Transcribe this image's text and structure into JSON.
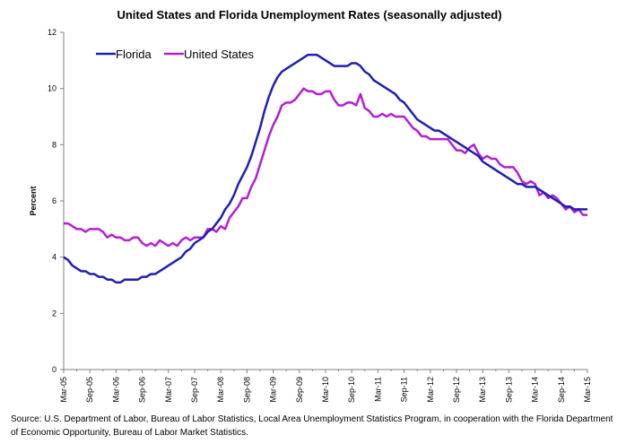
{
  "chart_data": {
    "type": "line",
    "title": "United States and Florida Unemployment Rates (seasonally adjusted)",
    "ylabel": "Percent",
    "xlabel": "",
    "ylim": [
      0,
      12
    ],
    "yticks": [
      0,
      2,
      4,
      6,
      8,
      10,
      12
    ],
    "xticks": [
      "Mar-05",
      "Sep-05",
      "Mar-06",
      "Sep-06",
      "Mar-07",
      "Sep-07",
      "Mar-08",
      "Sep-08",
      "Mar-09",
      "Sep-09",
      "Mar-10",
      "Sep-10",
      "Mar-11",
      "Sep-11",
      "Mar-12",
      "Sep-12",
      "Mar-13",
      "Sep-13",
      "Mar-14",
      "Sep-14",
      "Mar-15"
    ],
    "x_start": "Mar-05",
    "x_end": "Mar-15",
    "grid": false,
    "legend_position": "top-left",
    "series": [
      {
        "name": "Florida",
        "color": "#1f1fb4",
        "values": [
          4.0,
          3.9,
          3.7,
          3.6,
          3.5,
          3.5,
          3.4,
          3.4,
          3.3,
          3.3,
          3.2,
          3.2,
          3.1,
          3.1,
          3.2,
          3.2,
          3.2,
          3.2,
          3.3,
          3.3,
          3.4,
          3.4,
          3.5,
          3.6,
          3.7,
          3.8,
          3.9,
          4.0,
          4.2,
          4.3,
          4.5,
          4.6,
          4.7,
          4.9,
          5.0,
          5.2,
          5.4,
          5.7,
          5.9,
          6.2,
          6.6,
          6.9,
          7.2,
          7.6,
          8.1,
          8.6,
          9.2,
          9.7,
          10.1,
          10.4,
          10.6,
          10.7,
          10.8,
          10.9,
          11.0,
          11.1,
          11.2,
          11.2,
          11.2,
          11.1,
          11.0,
          10.9,
          10.8,
          10.8,
          10.8,
          10.8,
          10.9,
          10.9,
          10.8,
          10.6,
          10.5,
          10.3,
          10.2,
          10.1,
          10.0,
          9.9,
          9.8,
          9.6,
          9.5,
          9.3,
          9.1,
          8.9,
          8.8,
          8.7,
          8.6,
          8.5,
          8.5,
          8.4,
          8.3,
          8.2,
          8.1,
          8.0,
          7.9,
          7.8,
          7.7,
          7.6,
          7.4,
          7.3,
          7.2,
          7.1,
          7.0,
          6.9,
          6.8,
          6.7,
          6.6,
          6.6,
          6.5,
          6.5,
          6.5,
          6.4,
          6.3,
          6.2,
          6.1,
          6.0,
          5.9,
          5.8,
          5.8,
          5.7,
          5.7,
          5.7,
          5.7
        ]
      },
      {
        "name": "United States",
        "color": "#b41fd4",
        "values": [
          5.2,
          5.2,
          5.1,
          5.0,
          5.0,
          4.9,
          5.0,
          5.0,
          5.0,
          4.9,
          4.7,
          4.8,
          4.7,
          4.7,
          4.6,
          4.6,
          4.7,
          4.7,
          4.5,
          4.4,
          4.5,
          4.4,
          4.6,
          4.5,
          4.4,
          4.5,
          4.4,
          4.6,
          4.7,
          4.6,
          4.7,
          4.7,
          4.7,
          5.0,
          5.0,
          4.9,
          5.1,
          5.0,
          5.4,
          5.6,
          5.8,
          6.1,
          6.1,
          6.5,
          6.8,
          7.3,
          7.8,
          8.3,
          8.7,
          9.0,
          9.4,
          9.5,
          9.5,
          9.6,
          9.8,
          10.0,
          9.9,
          9.9,
          9.8,
          9.8,
          9.9,
          9.9,
          9.6,
          9.4,
          9.4,
          9.5,
          9.5,
          9.4,
          9.8,
          9.3,
          9.2,
          9.0,
          9.0,
          9.1,
          9.0,
          9.1,
          9.0,
          9.0,
          9.0,
          8.8,
          8.6,
          8.5,
          8.3,
          8.3,
          8.2,
          8.2,
          8.2,
          8.2,
          8.2,
          8.0,
          7.8,
          7.8,
          7.7,
          7.9,
          8.0,
          7.7,
          7.5,
          7.6,
          7.5,
          7.5,
          7.3,
          7.2,
          7.2,
          7.2,
          7.0,
          6.7,
          6.6,
          6.7,
          6.6,
          6.2,
          6.3,
          6.1,
          6.2,
          6.1,
          5.9,
          5.7,
          5.8,
          5.6,
          5.7,
          5.5,
          5.5
        ]
      }
    ]
  },
  "source_note": "Source:   U.S. Department of Labor, Bureau of Labor Statistics, Local Area Unemployment Statistics Program, in cooperation with the Florida Department of Economic Opportunity, Bureau of Labor Market Statistics."
}
